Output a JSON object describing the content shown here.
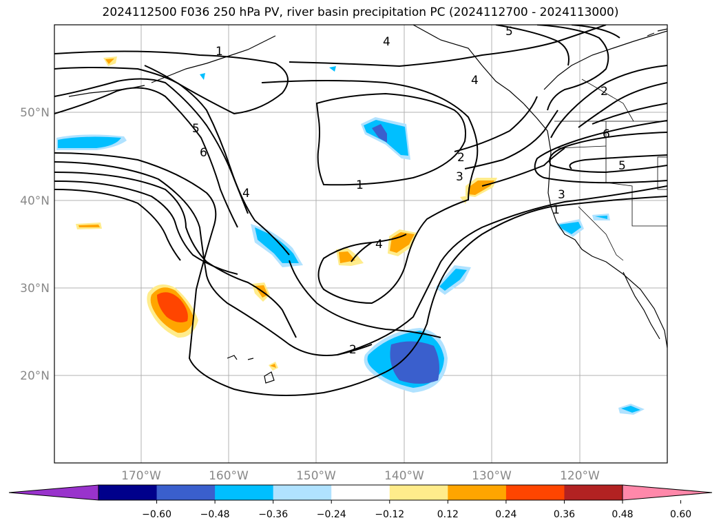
{
  "title": "2024112500 F036 250 hPa PV, river basin precipitation PC (2024112700 - 2024113000)",
  "map": {
    "lon_labels": [
      "170°W",
      "160°W",
      "150°W",
      "140°W",
      "130°W",
      "120°W"
    ],
    "lat_labels": [
      "50°N",
      "40°N",
      "30°N",
      "20°N"
    ],
    "contour_labels": [
      "1",
      "1",
      "1",
      "2",
      "2",
      "2",
      "3",
      "3",
      "4",
      "4",
      "4",
      "4",
      "5",
      "5",
      "5",
      "6",
      "6"
    ],
    "contour_color": "#000000",
    "grid_color": "#b0b0b0",
    "coast_color": "#000000"
  },
  "colorbar": {
    "ticks": [
      "−0.60",
      "−0.48",
      "−0.36",
      "−0.24",
      "−0.12",
      "0.12",
      "0.24",
      "0.36",
      "0.48",
      "0.60"
    ],
    "colors": [
      "#9933cc",
      "#00008b",
      "#3a5fcd",
      "#00bfff",
      "#b0e2ff",
      "#ffffff",
      "#ffec8b",
      "#ffa500",
      "#ff4500",
      "#b22222",
      "#ff88aa"
    ]
  }
}
